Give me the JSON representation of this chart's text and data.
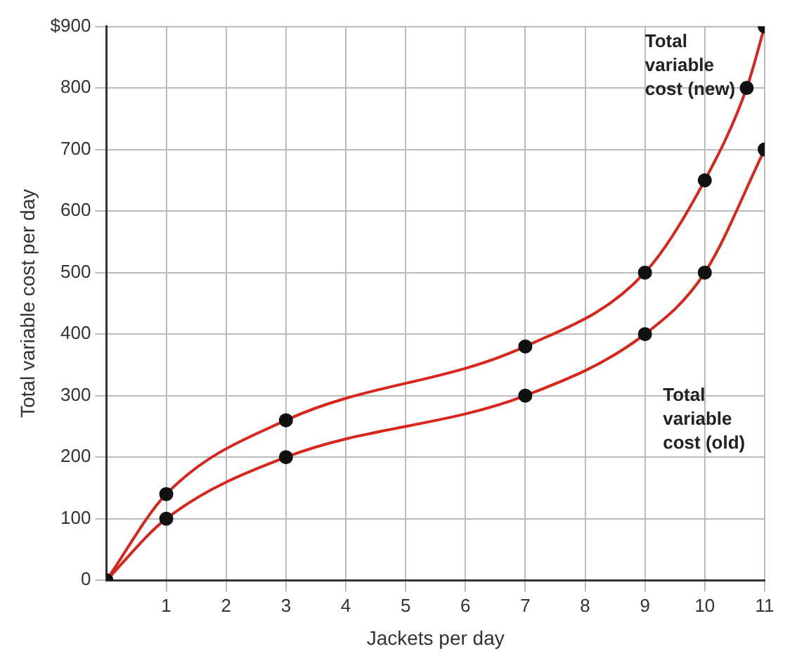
{
  "chart_data": {
    "type": "line",
    "xlabel": "Jackets per day",
    "ylabel": "Total variable cost per day",
    "xlim": [
      0,
      11
    ],
    "xticks": [
      1,
      2,
      3,
      4,
      5,
      6,
      7,
      8,
      9,
      10,
      11
    ],
    "ylim": [
      0,
      900
    ],
    "yticks": [
      0,
      100,
      200,
      300,
      400,
      500,
      600,
      700,
      800,
      {
        "value": 900,
        "label": "$900"
      }
    ],
    "grid": true,
    "legend": false,
    "marker": "circle",
    "series": [
      {
        "name": "Total variable cost (new)",
        "color": "#d9261c",
        "x": [
          0,
          1,
          3,
          7,
          9,
          10,
          10.7,
          11
        ],
        "values": [
          0,
          140,
          260,
          380,
          500,
          650,
          800,
          900
        ]
      },
      {
        "name": "Total variable cost (old)",
        "color": "#d9261c",
        "x": [
          0,
          1,
          3,
          7,
          9,
          10,
          11
        ],
        "values": [
          0,
          100,
          200,
          300,
          400,
          500,
          700
        ]
      }
    ]
  }
}
